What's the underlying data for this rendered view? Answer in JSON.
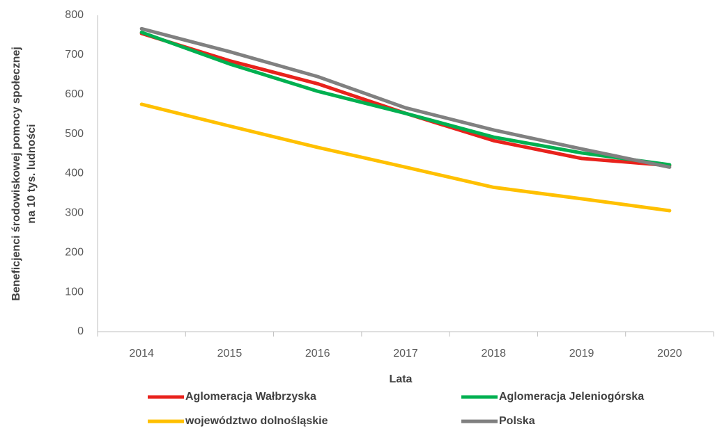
{
  "chart_data": {
    "type": "line",
    "y_label": [
      "Beneficjenci środowiskowej pomocy społecznej",
      "na 10 tys. ludności"
    ],
    "x_label": "Lata",
    "categories": [
      "2014",
      "2015",
      "2016",
      "2017",
      "2018",
      "2019",
      "2020"
    ],
    "series": [
      {
        "name": "Aglomeracja Wałbrzyska",
        "color": "#e8221c",
        "values": [
          754,
          685,
          627,
          552,
          483,
          438,
          420
        ]
      },
      {
        "name": "Aglomeracja Jeleniogórska",
        "color": "#00b050",
        "values": [
          757,
          677,
          608,
          552,
          492,
          452,
          422
        ]
      },
      {
        "name": "województwo dolnośląskie",
        "color": "#ffc000",
        "values": [
          575,
          520,
          466,
          416,
          365,
          336,
          306
        ]
      },
      {
        "name": "Polska",
        "color": "#808080",
        "values": [
          766,
          708,
          645,
          566,
          510,
          462,
          416
        ]
      }
    ],
    "ylim": [
      0,
      800
    ],
    "yticks": [
      0,
      100,
      200,
      300,
      400,
      500,
      600,
      700,
      800
    ],
    "grid": false
  }
}
